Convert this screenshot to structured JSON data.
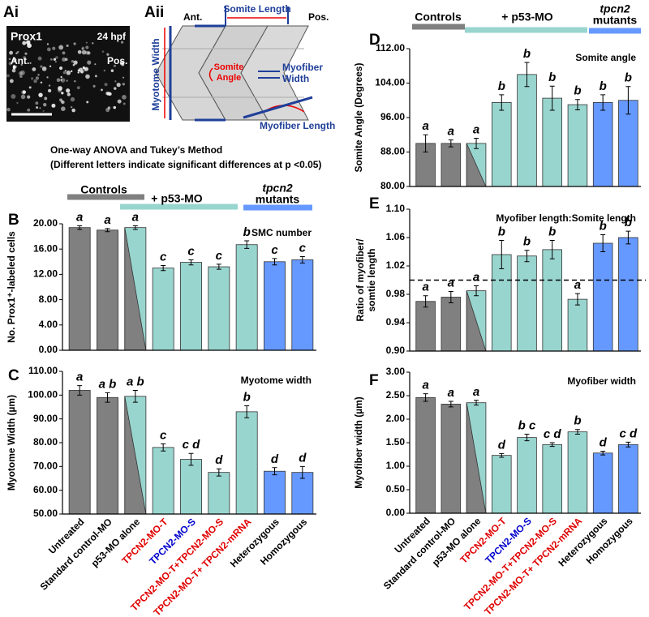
{
  "panel_a": {
    "label_i": "Ai",
    "label_ii": "Aii",
    "marker": "Prox1",
    "stage": "24 hpf",
    "ant": "Ant.",
    "pos": "Pos.",
    "diagram_ant": "Ant.",
    "diagram_pos": "Pos.",
    "somite_length": "Somite Length",
    "myotome_width": "Myotome Width",
    "somite_angle": [
      "Somite",
      "Angle"
    ],
    "myofiber_width": [
      "Myofiber",
      "Width"
    ],
    "myofiber_length": "Myofiber Length"
  },
  "stats_note": [
    "One-way ANOVA and Tukey’s Method",
    "(Different letters indicate significant differences at p <0.05)"
  ],
  "groups": [
    {
      "label": "Controls",
      "color": "#808080"
    },
    {
      "label": "+ p53-MO",
      "color": "#99d5cf"
    },
    {
      "label": [
        "tpcn2",
        "mutants"
      ],
      "color": "#6699ff"
    }
  ],
  "chart_data": [
    {
      "type": "bar",
      "panel": "B",
      "title": "SMC number",
      "y_label": "No. Prox1⁺-labeled cells",
      "values": [
        19.4,
        19.0,
        19.4,
        13.0,
        13.9,
        13.2,
        16.7,
        14.0,
        14.3
      ],
      "errors": [
        0.3,
        0.25,
        0.3,
        0.4,
        0.4,
        0.4,
        0.6,
        0.5,
        0.5
      ],
      "letters": [
        "a",
        "a",
        "a",
        "c",
        "c",
        "c",
        "b",
        "c",
        "c"
      ],
      "colors": [
        "#808080",
        "#808080",
        "#99d5cf",
        "#99d5cf",
        "#99d5cf",
        "#99d5cf",
        "#99d5cf",
        "#6699ff",
        "#6699ff"
      ],
      "split_bar": 2,
      "split_color": "#808080",
      "ylim": [
        0,
        20
      ],
      "yticks": [
        {
          "value": 0,
          "label": "0.00"
        },
        {
          "value": 4,
          "label": "4.00"
        },
        {
          "value": 8,
          "label": "8.00"
        },
        {
          "value": 12,
          "label": "12.00"
        },
        {
          "value": 16,
          "label": "16.00"
        },
        {
          "value": 20,
          "label": "20.00"
        }
      ]
    },
    {
      "type": "bar",
      "panel": "C",
      "title": "Myotome width",
      "y_label": "Myotome Width (µm)",
      "categories": [
        "Untreated",
        "Standard control-MO",
        "p53-MO alone",
        "TPCN2-MO-T",
        "TPCN2-MO-S",
        "TPCN2-MO-T+TPCN2-MO-S",
        "TPCN2-MO-T+ TPCN2-mRNA",
        "Heterozygous",
        "Homozygous"
      ],
      "category_colors": [
        "#000000",
        "#000000",
        "#000000",
        "#e00000",
        "#0000cc",
        "#e00000",
        "#e00000",
        "#000000",
        "#000000"
      ],
      "values": [
        102,
        99,
        99.5,
        78,
        73,
        67.5,
        93,
        68,
        67.5
      ],
      "errors": [
        2,
        2,
        2.5,
        1.5,
        2.5,
        1.5,
        2.5,
        1.5,
        2.5
      ],
      "letters": [
        "a",
        "a b",
        "a b",
        "c",
        "c d",
        "d",
        "b",
        "d",
        "d"
      ],
      "colors": [
        "#808080",
        "#808080",
        "#99d5cf",
        "#99d5cf",
        "#99d5cf",
        "#99d5cf",
        "#99d5cf",
        "#6699ff",
        "#6699ff"
      ],
      "split_bar": 2,
      "split_color": "#808080",
      "ylim": [
        50,
        110
      ],
      "yticks": [
        {
          "value": 50,
          "label": "50.00"
        },
        {
          "value": 60,
          "label": "60.00"
        },
        {
          "value": 70,
          "label": "70.00"
        },
        {
          "value": 80,
          "label": "80.00"
        },
        {
          "value": 90,
          "label": "90.00"
        },
        {
          "value": 100,
          "label": "100.00"
        },
        {
          "value": 110,
          "label": "110.00"
        }
      ]
    },
    {
      "type": "bar",
      "panel": "D",
      "title": "Somite angle",
      "y_label": "Somite Angle (Degrees)",
      "values": [
        90,
        90,
        90,
        99.5,
        106,
        100.5,
        99,
        99.5,
        100
      ],
      "errors": [
        2,
        0.8,
        1.2,
        1.8,
        2.8,
        2.8,
        1.2,
        1.8,
        3.2
      ],
      "letters": [
        "a",
        "a",
        "a",
        "b",
        "b",
        "b",
        "b",
        "b",
        "b"
      ],
      "colors": [
        "#808080",
        "#808080",
        "#99d5cf",
        "#99d5cf",
        "#99d5cf",
        "#99d5cf",
        "#99d5cf",
        "#6699ff",
        "#6699ff"
      ],
      "split_bar": 2,
      "split_color": "#808080",
      "ylim": [
        80,
        112
      ],
      "yticks": [
        {
          "value": 80,
          "label": "80.00"
        },
        {
          "value": 88,
          "label": "88.00"
        },
        {
          "value": 96,
          "label": "96.00"
        },
        {
          "value": 104,
          "label": "104.00"
        },
        {
          "value": 112,
          "label": "112.00"
        }
      ]
    },
    {
      "type": "bar",
      "panel": "E",
      "title": "Myofiber length:Somite length",
      "y_label": [
        "Ratio of myofiber/",
        "somtie length"
      ],
      "values": [
        0.97,
        0.976,
        0.985,
        1.036,
        1.034,
        1.043,
        0.973,
        1.052,
        1.06
      ],
      "errors": [
        0.008,
        0.008,
        0.007,
        0.02,
        0.008,
        0.013,
        0.008,
        0.012,
        0.009
      ],
      "letters": [
        "a",
        "a",
        "a",
        "b",
        "b",
        "b",
        "a",
        "b",
        "b"
      ],
      "colors": [
        "#808080",
        "#808080",
        "#99d5cf",
        "#99d5cf",
        "#99d5cf",
        "#99d5cf",
        "#99d5cf",
        "#6699ff",
        "#6699ff"
      ],
      "split_bar": 2,
      "split_color": "#808080",
      "ref_line": 1,
      "ylim": [
        0.9,
        1.1
      ],
      "yticks": [
        {
          "value": 0.9,
          "label": "0.90"
        },
        {
          "value": 0.94,
          "label": "0.94"
        },
        {
          "value": 0.98,
          "label": "0.98"
        },
        {
          "value": 1.02,
          "label": "1.02"
        },
        {
          "value": 1.06,
          "label": "1.06"
        },
        {
          "value": 1.1,
          "label": "1.10"
        }
      ]
    },
    {
      "type": "bar",
      "panel": "F",
      "title": "Myofiber width",
      "y_label": "Myofiber  width (µm)",
      "categories": [
        "Untreated",
        "Standard control-MO",
        "p53-MO alone",
        "TPCN2-MO-T",
        "TPCN2-MO-S",
        "TPCN2-MO-T+TPCN2-MO-S",
        "TPCN2-MO-T+ TPCN2-mRNA",
        "Heterozygous",
        "Homozygous"
      ],
      "category_colors": [
        "#000000",
        "#000000",
        "#000000",
        "#e00000",
        "#0000cc",
        "#e00000",
        "#e00000",
        "#000000",
        "#000000"
      ],
      "values": [
        2.46,
        2.32,
        2.35,
        1.23,
        1.61,
        1.46,
        1.73,
        1.28,
        1.46
      ],
      "errors": [
        0.08,
        0.06,
        0.05,
        0.04,
        0.07,
        0.04,
        0.05,
        0.04,
        0.05
      ],
      "letters": [
        "a",
        "a",
        "a",
        "d",
        "b c",
        "c d",
        "b",
        "d",
        "c d"
      ],
      "colors": [
        "#808080",
        "#808080",
        "#99d5cf",
        "#99d5cf",
        "#99d5cf",
        "#99d5cf",
        "#99d5cf",
        "#6699ff",
        "#6699ff"
      ],
      "split_bar": 2,
      "split_color": "#808080",
      "ylim": [
        0,
        3
      ],
      "yticks": [
        {
          "value": 0,
          "label": "0.00"
        },
        {
          "value": 0.5,
          "label": "0.50"
        },
        {
          "value": 1,
          "label": "1.00"
        },
        {
          "value": 1.5,
          "label": "1.50"
        },
        {
          "value": 2,
          "label": "2.00"
        },
        {
          "value": 2.5,
          "label": "2.50"
        },
        {
          "value": 3,
          "label": "3.00"
        }
      ]
    }
  ]
}
